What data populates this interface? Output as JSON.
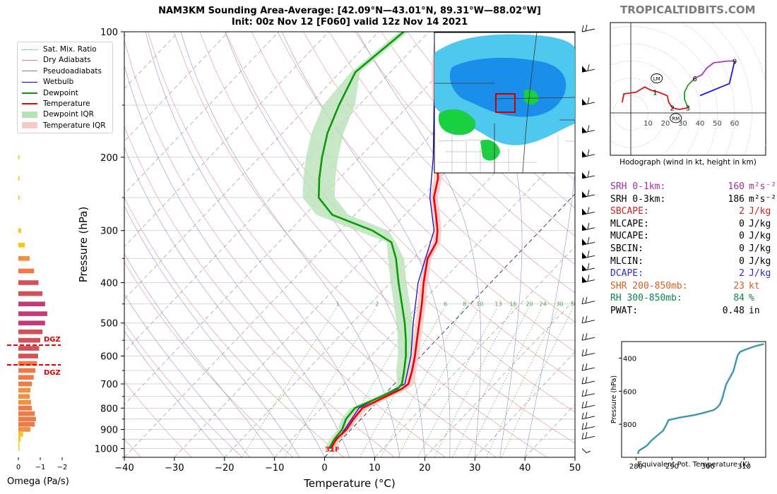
{
  "brand": "TROPICALTIDBITS.COM",
  "title": {
    "line1": "NAM3KM Sounding Area-Average: [42.09°N—43.01°N, 89.31°W—88.02°W]",
    "line2": "Init: 00z Nov 12 [F060] valid 12z Nov 14 2021"
  },
  "chart_data": [
    {
      "type": "line",
      "name": "skewt",
      "xlabel": "Temperature (°C)",
      "ylabel": "Pressure (hPa)",
      "xlim": [
        -40,
        50
      ],
      "ylim": [
        1050,
        100
      ],
      "y_scale": "log",
      "x_ticks": [
        -40,
        -30,
        -20,
        -10,
        0,
        10,
        20,
        30,
        40,
        50
      ],
      "y_ticks": [
        100,
        200,
        300,
        400,
        500,
        600,
        700,
        800,
        900,
        1000
      ],
      "grid": true,
      "surface_label": "31F",
      "mixing_ratio_labels": [
        "1",
        "2",
        "4",
        "6",
        "8",
        "10",
        "13",
        "16",
        "20",
        "24",
        "30",
        "36"
      ],
      "temperature": [
        {
          "p": 1000,
          "t": -0.4
        },
        {
          "p": 950,
          "t": -1.1
        },
        {
          "p": 900,
          "t": -0.9
        },
        {
          "p": 850,
          "t": -1.5
        },
        {
          "p": 800,
          "t": -1.8
        },
        {
          "p": 760,
          "t": 0.2
        },
        {
          "p": 720,
          "t": 2.4
        },
        {
          "p": 700,
          "t": 2.8
        },
        {
          "p": 650,
          "t": 1.0
        },
        {
          "p": 600,
          "t": -1.2
        },
        {
          "p": 550,
          "t": -3.8
        },
        {
          "p": 500,
          "t": -6.6
        },
        {
          "p": 450,
          "t": -9.7
        },
        {
          "p": 400,
          "t": -13.4
        },
        {
          "p": 350,
          "t": -17.2
        },
        {
          "p": 320,
          "t": -18.5
        },
        {
          "p": 300,
          "t": -20.5
        },
        {
          "p": 275,
          "t": -23.8
        },
        {
          "p": 250,
          "t": -27.5
        },
        {
          "p": 225,
          "t": -30.3
        },
        {
          "p": 200,
          "t": -34.5
        },
        {
          "p": 175,
          "t": -39.0
        },
        {
          "p": 150,
          "t": -44.5
        },
        {
          "p": 125,
          "t": -51.0
        },
        {
          "p": 100,
          "t": -58.0
        }
      ],
      "dewpoint": [
        {
          "p": 1000,
          "t": -0.8
        },
        {
          "p": 950,
          "t": -1.5
        },
        {
          "p": 900,
          "t": -1.8
        },
        {
          "p": 850,
          "t": -3.0
        },
        {
          "p": 800,
          "t": -3.3
        },
        {
          "p": 760,
          "t": -0.8
        },
        {
          "p": 720,
          "t": 1.6
        },
        {
          "p": 700,
          "t": 1.5
        },
        {
          "p": 650,
          "t": -0.6
        },
        {
          "p": 600,
          "t": -3.0
        },
        {
          "p": 550,
          "t": -6.0
        },
        {
          "p": 500,
          "t": -9.5
        },
        {
          "p": 450,
          "t": -13.7
        },
        {
          "p": 400,
          "t": -18.4
        },
        {
          "p": 350,
          "t": -23.5
        },
        {
          "p": 320,
          "t": -27.5
        },
        {
          "p": 300,
          "t": -33.5
        },
        {
          "p": 275,
          "t": -44.5
        },
        {
          "p": 250,
          "t": -50.5
        },
        {
          "p": 225,
          "t": -54.0
        },
        {
          "p": 200,
          "t": -57.5
        },
        {
          "p": 175,
          "t": -61.0
        },
        {
          "p": 150,
          "t": -64.0
        },
        {
          "p": 125,
          "t": -67.0
        },
        {
          "p": 100,
          "t": -65.0
        }
      ],
      "wetbulb": [
        {
          "p": 1000,
          "t": -0.6
        },
        {
          "p": 900,
          "t": -1.3
        },
        {
          "p": 800,
          "t": -2.5
        },
        {
          "p": 700,
          "t": 2.1
        },
        {
          "p": 600,
          "t": -2.0
        },
        {
          "p": 500,
          "t": -7.8
        },
        {
          "p": 400,
          "t": -14.5
        },
        {
          "p": 300,
          "t": -21.2
        },
        {
          "p": 250,
          "t": -28.3
        },
        {
          "p": 200,
          "t": -35.3
        },
        {
          "p": 150,
          "t": -45.0
        },
        {
          "p": 100,
          "t": -58.2
        }
      ],
      "wind_barbs": [
        {
          "p": 1000,
          "label": "calm"
        },
        {
          "p": 950,
          "label": "barb"
        },
        {
          "p": 900,
          "label": "barb"
        },
        {
          "p": 850,
          "label": "barb"
        },
        {
          "p": 800,
          "label": "barb"
        },
        {
          "p": 750,
          "label": "barb"
        },
        {
          "p": 700,
          "label": "barb"
        },
        {
          "p": 650,
          "label": "barb"
        },
        {
          "p": 600,
          "label": "barb"
        },
        {
          "p": 550,
          "label": "barb"
        },
        {
          "p": 500,
          "label": "barb"
        },
        {
          "p": 450,
          "label": "barb"
        },
        {
          "p": 400,
          "label": "flag"
        },
        {
          "p": 375,
          "label": "flag"
        },
        {
          "p": 350,
          "label": "flag"
        },
        {
          "p": 325,
          "label": "flag"
        },
        {
          "p": 300,
          "label": "flag"
        },
        {
          "p": 275,
          "label": "flag"
        },
        {
          "p": 250,
          "label": "flag"
        },
        {
          "p": 225,
          "label": "flag"
        },
        {
          "p": 200,
          "label": "flag"
        },
        {
          "p": 175,
          "label": "flag"
        },
        {
          "p": 150,
          "label": "flag"
        },
        {
          "p": 125,
          "label": "flag"
        },
        {
          "p": 100,
          "label": "barb"
        }
      ]
    },
    {
      "type": "bar",
      "name": "omega",
      "xlabel": "Omega (Pa/s)",
      "x_ticks": [
        "0",
        "−1",
        "−2"
      ],
      "xlim": [
        0.2,
        -2.2
      ],
      "dgz_label": "DGZ",
      "dgz_p": [
        565,
        630
      ],
      "bars": [
        {
          "p": 1000,
          "v": -0.02
        },
        {
          "p": 975,
          "v": -0.05
        },
        {
          "p": 950,
          "v": -0.1
        },
        {
          "p": 925,
          "v": -0.22
        },
        {
          "p": 900,
          "v": -0.55
        },
        {
          "p": 875,
          "v": -0.75
        },
        {
          "p": 850,
          "v": -0.8
        },
        {
          "p": 825,
          "v": -0.75
        },
        {
          "p": 800,
          "v": -0.62
        },
        {
          "p": 775,
          "v": -0.58
        },
        {
          "p": 750,
          "v": -0.52
        },
        {
          "p": 725,
          "v": -0.55
        },
        {
          "p": 700,
          "v": -0.62
        },
        {
          "p": 675,
          "v": -0.7
        },
        {
          "p": 650,
          "v": -0.78
        },
        {
          "p": 625,
          "v": -0.85
        },
        {
          "p": 600,
          "v": -0.9
        },
        {
          "p": 575,
          "v": -0.95
        },
        {
          "p": 550,
          "v": -1.0
        },
        {
          "p": 525,
          "v": -1.1
        },
        {
          "p": 500,
          "v": -1.22
        },
        {
          "p": 475,
          "v": -1.32
        },
        {
          "p": 450,
          "v": -1.22
        },
        {
          "p": 425,
          "v": -1.1
        },
        {
          "p": 400,
          "v": -0.92
        },
        {
          "p": 375,
          "v": -0.72
        },
        {
          "p": 350,
          "v": -0.52
        },
        {
          "p": 325,
          "v": -0.3
        },
        {
          "p": 300,
          "v": -0.12
        },
        {
          "p": 250,
          "v": -0.04
        },
        {
          "p": 225,
          "v": -0.05
        },
        {
          "p": 200,
          "v": -0.03
        }
      ]
    },
    {
      "type": "line",
      "name": "hodograph",
      "caption": "Hodograph (wind in kt, height in km)",
      "ring_labels": [
        "10",
        "20",
        "30",
        "40",
        "50",
        "60"
      ],
      "height_labels": [
        {
          "label": "1",
          "u": 14,
          "v": 12
        },
        {
          "label": "2",
          "u": 24,
          "v": 3
        },
        {
          "label": "3",
          "u": 33,
          "v": 3
        },
        {
          "label": "6",
          "u": 37,
          "v": 20
        },
        {
          "label": "9",
          "u": 60,
          "v": 30
        }
      ],
      "markers": [
        {
          "label": "LM",
          "u": 15,
          "v": 20
        },
        {
          "label": "RM",
          "u": 26,
          "v": -3
        }
      ],
      "segments": [
        {
          "color": "#e01010",
          "points": [
            [
              -5,
              6
            ],
            [
              -4,
              11
            ],
            [
              3,
              12
            ],
            [
              8,
              15
            ],
            [
              12,
              13
            ],
            [
              16,
              12
            ],
            [
              21,
              10
            ],
            [
              22,
              6
            ],
            [
              24,
              3
            ],
            [
              28,
              2
            ],
            [
              33,
              3
            ]
          ]
        },
        {
          "color": "#2a9a2a",
          "points": [
            [
              33,
              3
            ],
            [
              31,
              8
            ],
            [
              31,
              12
            ],
            [
              33,
              16
            ],
            [
              37,
              20
            ]
          ]
        },
        {
          "color": "#b030c0",
          "points": [
            [
              37,
              20
            ],
            [
              41,
              22
            ],
            [
              44,
              26
            ],
            [
              48,
              29
            ],
            [
              56,
              30
            ],
            [
              60,
              30
            ]
          ]
        },
        {
          "color": "#1a1ae0",
          "points": [
            [
              60,
              30
            ],
            [
              57,
              17
            ],
            [
              40,
              10
            ]
          ]
        }
      ]
    },
    {
      "type": "line",
      "name": "theta-e",
      "xlabel": "Equivalent Pot. Temperature (K)",
      "ylabel": "Pressure (hPa)",
      "x_ticks": [
        "280",
        "290",
        "300",
        "310"
      ],
      "y_ticks": [
        "400",
        "600",
        "800"
      ],
      "xlim": [
        276,
        316
      ],
      "ylim": [
        1000,
        300
      ],
      "points": [
        {
          "p": 980,
          "x": 280.5
        },
        {
          "p": 960,
          "x": 280.8
        },
        {
          "p": 930,
          "x": 283.0
        },
        {
          "p": 900,
          "x": 284.2
        },
        {
          "p": 870,
          "x": 285.8
        },
        {
          "p": 840,
          "x": 287.5
        },
        {
          "p": 800,
          "x": 288.5
        },
        {
          "p": 775,
          "x": 289.0
        },
        {
          "p": 760,
          "x": 292.0
        },
        {
          "p": 745,
          "x": 296.0
        },
        {
          "p": 730,
          "x": 299.0
        },
        {
          "p": 715,
          "x": 301.5
        },
        {
          "p": 700,
          "x": 302.5
        },
        {
          "p": 680,
          "x": 303.3
        },
        {
          "p": 640,
          "x": 304.0
        },
        {
          "p": 600,
          "x": 304.5
        },
        {
          "p": 560,
          "x": 305.0
        },
        {
          "p": 520,
          "x": 306.0
        },
        {
          "p": 480,
          "x": 307.0
        },
        {
          "p": 440,
          "x": 307.5
        },
        {
          "p": 400,
          "x": 308.0
        },
        {
          "p": 380,
          "x": 308.3
        },
        {
          "p": 360,
          "x": 309.0
        },
        {
          "p": 340,
          "x": 311.5
        },
        {
          "p": 325,
          "x": 313.5
        },
        {
          "p": 315,
          "x": 315.5
        }
      ]
    }
  ],
  "legend": [
    {
      "label": "Sat. Mix. Ratio",
      "color": "#4aa04a",
      "style": "dotted"
    },
    {
      "label": "Dry Adiabats",
      "color": "#e08080",
      "style": "solid-thin"
    },
    {
      "label": "Pseudoadiabats",
      "color": "#8080d0",
      "style": "solid-thin"
    },
    {
      "label": "Wetbulb",
      "color": "#0000cc",
      "style": "solid"
    },
    {
      "label": "Dewpoint",
      "color": "#0a9a0a",
      "style": "thick"
    },
    {
      "label": "Temperature",
      "color": "#ee0000",
      "style": "thick"
    },
    {
      "label": "Dewpoint IQR",
      "color": "#b8e0b8",
      "style": "box"
    },
    {
      "label": "Temperature IQR",
      "color": "#f8c8c8",
      "style": "box"
    }
  ],
  "params": [
    {
      "label": "SRH 0-1km:",
      "value": "160",
      "unit": "m²s⁻²",
      "color": "#a030a0"
    },
    {
      "label": "SRH 0-3km:",
      "value": "186",
      "unit": "m²s⁻²",
      "color": "#000000"
    },
    {
      "label": "SBCAPE:",
      "value": "2",
      "unit": "J/kg",
      "color": "#d02020"
    },
    {
      "label": "MLCAPE:",
      "value": "0",
      "unit": "J/kg",
      "color": "#000000"
    },
    {
      "label": "MUCAPE:",
      "value": "0",
      "unit": "J/kg",
      "color": "#000000"
    },
    {
      "label": "SBCIN:",
      "value": "0",
      "unit": "J/kg",
      "color": "#000000"
    },
    {
      "label": "MLCIN:",
      "value": "0",
      "unit": "J/kg",
      "color": "#000000"
    },
    {
      "label": "DCAPE:",
      "value": "2",
      "unit": "J/kg",
      "color": "#2a2ad0"
    },
    {
      "label": "SHR 200-850mb:",
      "value": "23",
      "unit": "kt",
      "color": "#d06020"
    },
    {
      "label": "RH 300-850mb:",
      "value": "84",
      "unit": "%",
      "color": "#108050"
    },
    {
      "label": "PWAT:",
      "value": "0.48",
      "unit": "in",
      "color": "#000000"
    }
  ],
  "colors": {
    "temperature": "#ee0000",
    "dewpoint": "#0a9a0a",
    "wetbulb": "#0000cc",
    "theta_e": "#3b96b0",
    "dgz": "#dd0000",
    "radar_light": "#4fc8f0",
    "radar_mid": "#1a8ee8",
    "radar_green": "#19d040"
  }
}
